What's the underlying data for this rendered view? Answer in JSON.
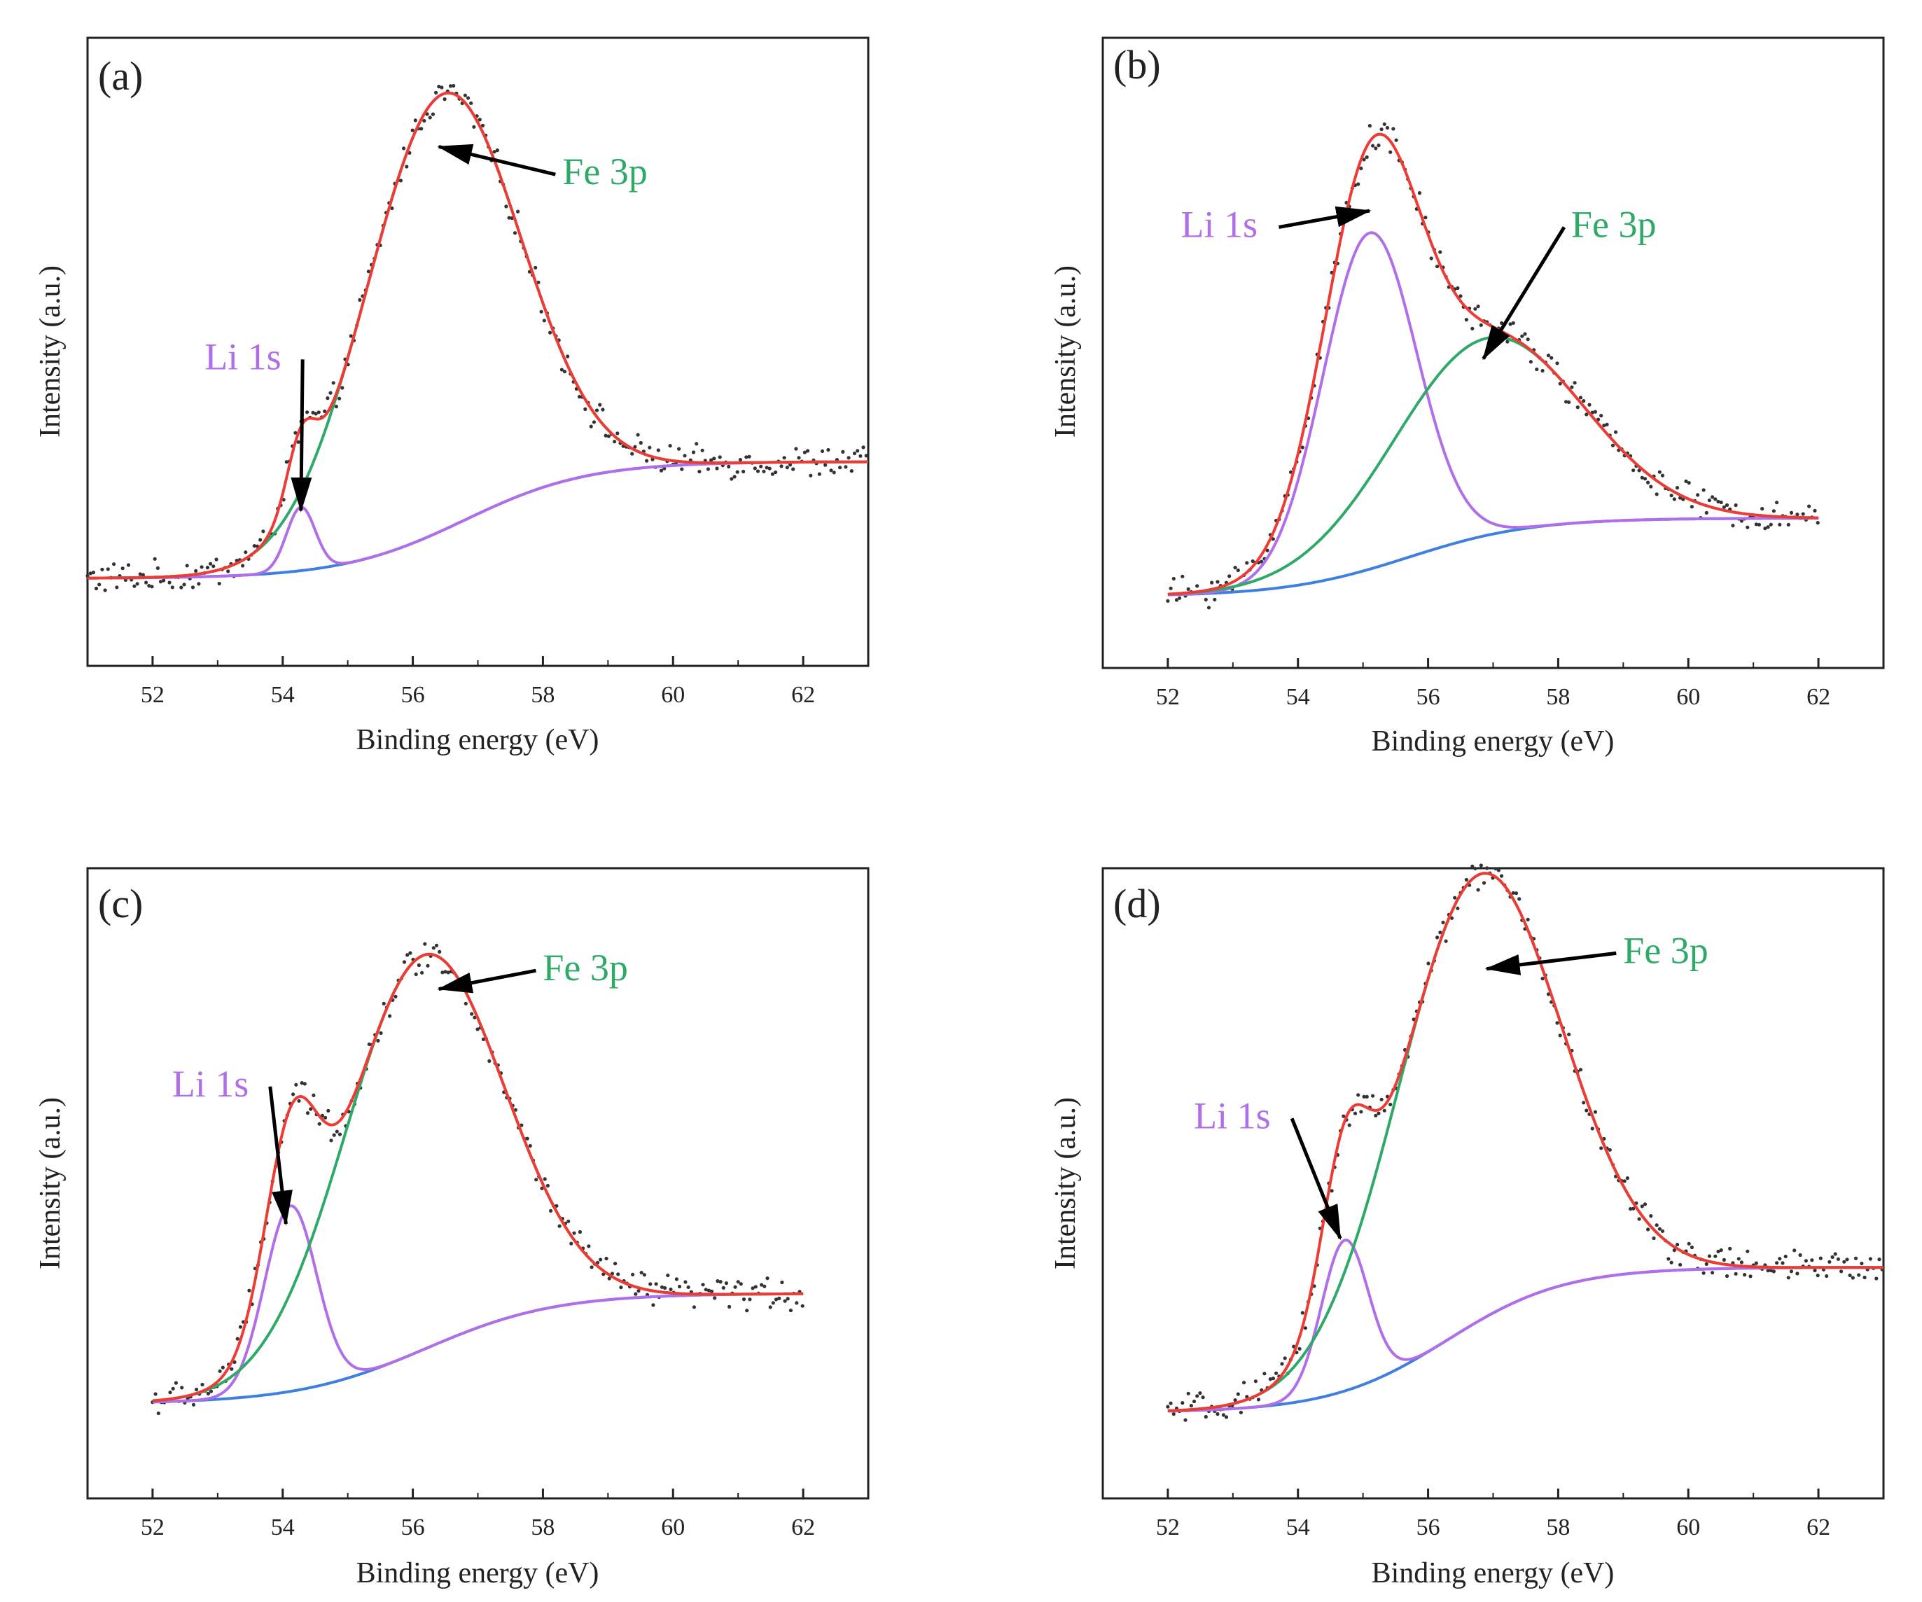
{
  "colors": {
    "fit_total": "#ee3b36",
    "li": "#b06ee8",
    "fe": "#2fa968",
    "background": "#3f7fe0",
    "raw": "#333333",
    "axis": "#222222",
    "arrow": "#000000"
  },
  "chart_data": [
    {
      "panel": "(a)",
      "type": "line",
      "xlabel": "Binding energy (eV)",
      "ylabel": "Intensity (a.u.)",
      "xlim": [
        51,
        63
      ],
      "ylim": [
        0,
        1
      ],
      "xticks": [
        "52",
        "54",
        "56",
        "58",
        "60",
        "62"
      ],
      "raw_range": [
        51,
        63
      ],
      "fit_range": [
        51,
        63
      ],
      "background": {
        "low": 0.108,
        "high": 0.31,
        "center": 56.8,
        "width": 0.95
      },
      "components": [
        {
          "name": "Li 1s",
          "center": 54.28,
          "amplitude": 0.11,
          "sigma": 0.22
        },
        {
          "name": "Fe 3p",
          "center": 56.45,
          "amplitude": 0.755,
          "sigma": 1.18
        }
      ],
      "series": [
        {
          "name": "Raw data",
          "style": "dots"
        },
        {
          "name": "Envelope",
          "style": "red"
        },
        {
          "name": "Li 1s",
          "style": "purple"
        },
        {
          "name": "Fe 3p",
          "style": "green"
        },
        {
          "name": "Background",
          "style": "blue"
        }
      ],
      "annotations": [
        {
          "text": "Fe 3p",
          "x": 58.3,
          "y": 0.79,
          "tip_x": 56.4,
          "tip_y": 0.855
        },
        {
          "text": "Li 1s",
          "x": 52.8,
          "y": 0.47,
          "tip_x": 54.28,
          "tip_y": 0.225
        }
      ]
    },
    {
      "panel": "(b)",
      "type": "line",
      "xlabel": "Binding energy (eV)",
      "ylabel": "Intensity (a.u.)",
      "xlim": [
        51,
        63
      ],
      "ylim": [
        0,
        1
      ],
      "xticks": [
        "52",
        "54",
        "56",
        "58",
        "60",
        "62"
      ],
      "raw_range": [
        52,
        62
      ],
      "fit_range": [
        52,
        62
      ],
      "background": {
        "low": 0.08,
        "high": 0.215,
        "center": 55.7,
        "width": 0.95
      },
      "components": [
        {
          "name": "Li 1s",
          "center": 55.1,
          "amplitude": 0.58,
          "sigma": 0.72
        },
        {
          "name": "Fe 3p",
          "center": 56.9,
          "amplitude": 0.34,
          "sigma": 1.45
        }
      ],
      "series": [
        {
          "name": "Raw data",
          "style": "dots"
        },
        {
          "name": "Envelope",
          "style": "red"
        },
        {
          "name": "Li 1s",
          "style": "purple"
        },
        {
          "name": "Fe 3p",
          "style": "green"
        },
        {
          "name": "Background",
          "style": "blue"
        }
      ],
      "annotations": [
        {
          "text": "Li 1s",
          "x": 52.2,
          "y": 0.7,
          "tip_x": 55.1,
          "tip_y": 0.745
        },
        {
          "text": "Fe 3p",
          "x": 58.2,
          "y": 0.7,
          "tip_x": 56.85,
          "tip_y": 0.49
        }
      ]
    },
    {
      "panel": "(c)",
      "type": "line",
      "xlabel": "Binding energy (eV)",
      "ylabel": "Intensity (a.u.)",
      "xlim": [
        51,
        63
      ],
      "ylim": [
        0,
        1
      ],
      "xticks": [
        "52",
        "54",
        "56",
        "58",
        "60",
        "62"
      ],
      "raw_range": [
        52,
        62
      ],
      "fit_range": [
        52,
        62
      ],
      "background": {
        "low": 0.12,
        "high": 0.31,
        "center": 56.2,
        "width": 1.0
      },
      "components": [
        {
          "name": "Li 1s",
          "center": 54.12,
          "amplitude": 0.32,
          "sigma": 0.4
        },
        {
          "name": "Fe 3p",
          "center": 56.15,
          "amplitude": 0.68,
          "sigma": 1.22
        }
      ],
      "series": [
        {
          "name": "Raw data",
          "style": "dots"
        },
        {
          "name": "Envelope",
          "style": "red"
        },
        {
          "name": "Li 1s",
          "style": "purple"
        },
        {
          "name": "Fe 3p",
          "style": "green"
        },
        {
          "name": "Background",
          "style": "blue"
        }
      ],
      "annotations": [
        {
          "text": "Fe 3p",
          "x": 58.0,
          "y": 0.85,
          "tip_x": 56.4,
          "tip_y": 0.835
        },
        {
          "text": "Li 1s",
          "x": 52.3,
          "y": 0.65,
          "tip_x": 54.05,
          "tip_y": 0.43
        }
      ]
    },
    {
      "panel": "(d)",
      "type": "line",
      "xlabel": "Binding energy (eV)",
      "ylabel": "Intensity (a.u.)",
      "xlim": [
        51,
        63
      ],
      "ylim": [
        0,
        1
      ],
      "xticks": [
        "52",
        "54",
        "56",
        "58",
        "60",
        "62"
      ],
      "raw_range": [
        52,
        63
      ],
      "fit_range": [
        52,
        63
      ],
      "background": {
        "low": 0.105,
        "high": 0.355,
        "center": 56.3,
        "width": 0.9
      },
      "components": [
        {
          "name": "Li 1s",
          "center": 54.72,
          "amplitude": 0.26,
          "sigma": 0.36
        },
        {
          "name": "Fe 3p",
          "center": 56.75,
          "amplitude": 0.77,
          "sigma": 1.25
        }
      ],
      "series": [
        {
          "name": "Raw data",
          "style": "dots"
        },
        {
          "name": "Envelope",
          "style": "red"
        },
        {
          "name": "Li 1s",
          "style": "purple"
        },
        {
          "name": "Fe 3p",
          "style": "green"
        },
        {
          "name": "Background",
          "style": "blue"
        }
      ],
      "annotations": [
        {
          "text": "Fe 3p",
          "x": 59.0,
          "y": 0.88,
          "tip_x": 56.9,
          "tip_y": 0.87
        },
        {
          "text": "Li 1s",
          "x": 52.4,
          "y": 0.595,
          "tip_x": 54.65,
          "tip_y": 0.405
        }
      ]
    }
  ]
}
